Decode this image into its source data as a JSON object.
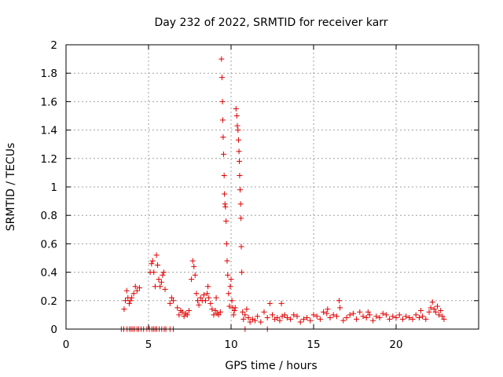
{
  "chart_data": {
    "type": "scatter",
    "title": "Day 232 of 2022, SRMTID for receiver karr",
    "xlabel": "GPS time / hours",
    "ylabel": "SRMTID / TECUs",
    "xlim": [
      0,
      25
    ],
    "ylim": [
      0,
      2
    ],
    "xticks": [
      "0",
      "5",
      "10",
      "15",
      "20"
    ],
    "yticks": [
      "0",
      "0.2",
      "0.4",
      "0.6",
      "0.8",
      "1",
      "1.2",
      "1.4",
      "1.6",
      "1.8",
      "2"
    ],
    "xtick_values": [
      0,
      5,
      10,
      15,
      20
    ],
    "ytick_values": [
      0,
      0.2,
      0.4,
      0.6,
      0.8,
      1.0,
      1.2,
      1.4,
      1.6,
      1.8,
      2.0
    ],
    "grid": true,
    "marker": "+",
    "colors": {
      "series": "#e00000",
      "grid": "#a0a0a0",
      "axis": "#000000"
    },
    "series": [
      {
        "name": "SRMTID",
        "x": [
          3.35,
          3.5,
          3.7,
          3.85,
          3.95,
          4.05,
          4.15,
          4.3,
          4.4,
          4.55,
          4.7,
          4.9,
          5.05,
          5.2,
          5.3,
          5.4,
          5.5,
          5.65,
          5.8,
          5.95,
          6.05,
          6.3,
          6.5,
          3.52,
          3.6,
          3.68,
          3.75,
          3.83,
          3.9,
          3.98,
          4.1,
          4.2,
          4.3,
          4.45,
          5.1,
          5.18,
          5.25,
          5.32,
          5.4,
          5.48,
          5.55,
          5.62,
          5.7,
          5.78,
          5.85,
          5.92,
          6.0,
          6.3,
          6.4,
          6.5,
          6.75,
          6.85,
          6.95,
          7.05,
          7.15,
          7.25,
          7.35,
          7.45,
          7.6,
          7.68,
          7.75,
          7.82,
          7.9,
          7.98,
          8.05,
          8.15,
          8.25,
          8.35,
          8.45,
          8.55,
          8.65,
          8.75,
          8.85,
          8.95,
          9.05,
          9.15,
          9.25,
          9.35,
          9.42,
          9.45,
          9.48,
          9.5,
          9.52,
          9.55,
          9.58,
          9.6,
          9.63,
          9.66,
          9.7,
          9.73,
          9.76,
          9.8,
          9.85,
          9.9,
          9.95,
          10.0,
          10.05,
          10.1,
          10.15,
          10.2,
          10.25,
          10.3,
          10.35,
          10.38,
          10.42,
          10.45,
          10.48,
          10.5,
          10.52,
          10.55,
          10.58,
          10.6,
          10.62,
          10.65,
          10.7,
          10.75,
          10.85,
          10.95,
          11.05,
          11.15,
          11.3,
          11.45,
          11.6,
          11.8,
          12.0,
          12.2,
          12.35,
          12.5,
          12.65,
          12.8,
          12.95,
          13.1,
          13.25,
          13.4,
          13.6,
          13.8,
          14.0,
          14.2,
          14.4,
          14.6,
          14.8,
          15.0,
          15.2,
          15.4,
          15.6,
          15.8,
          16.0,
          16.2,
          16.4,
          16.6,
          16.8,
          17.0,
          17.2,
          17.4,
          17.6,
          17.8,
          18.0,
          18.2,
          18.4,
          18.6,
          18.8,
          19.0,
          19.2,
          19.4,
          19.6,
          19.8,
          20.0,
          20.2,
          20.4,
          20.6,
          20.8,
          21.0,
          21.2,
          21.4,
          21.6,
          21.8,
          22.0,
          22.1,
          22.2,
          22.3,
          22.4,
          22.5,
          22.6,
          22.7,
          22.8,
          22.9,
          16.55,
          15.85,
          13.05,
          8.6,
          9.1,
          18.3,
          21.5,
          12.2,
          10.85
        ],
        "y": [
          0,
          0,
          0,
          0,
          0,
          0,
          0,
          0,
          0,
          0,
          0,
          0,
          0,
          0,
          0,
          0,
          0,
          0,
          0,
          0,
          0,
          0,
          0,
          0.14,
          0.2,
          0.27,
          0.22,
          0.18,
          0.2,
          0.22,
          0.25,
          0.3,
          0.27,
          0.29,
          0.4,
          0.46,
          0.48,
          0.4,
          0.3,
          0.52,
          0.45,
          0.35,
          0.3,
          0.33,
          0.38,
          0.4,
          0.28,
          0.18,
          0.22,
          0.2,
          0.15,
          0.1,
          0.13,
          0.12,
          0.09,
          0.11,
          0.1,
          0.13,
          0.35,
          0.48,
          0.44,
          0.38,
          0.25,
          0.2,
          0.17,
          0.22,
          0.2,
          0.24,
          0.2,
          0.25,
          0.22,
          0.18,
          0.14,
          0.1,
          0.13,
          0.11,
          0.1,
          0.12,
          1.9,
          1.77,
          1.6,
          1.47,
          1.35,
          1.23,
          1.08,
          0.95,
          0.88,
          0.86,
          0.76,
          0.6,
          0.48,
          0.38,
          0.25,
          0.16,
          0.3,
          0.35,
          0.2,
          0.15,
          0.1,
          0.13,
          0.15,
          1.55,
          1.5,
          1.43,
          1.4,
          1.33,
          1.25,
          1.18,
          1.08,
          0.98,
          0.88,
          0.78,
          0.58,
          0.4,
          0.12,
          0.07,
          0.1,
          0.14,
          0.08,
          0.05,
          0.07,
          0.06,
          0.09,
          0.05,
          0.12,
          0.08,
          0.18,
          0.1,
          0.07,
          0.08,
          0.06,
          0.09,
          0.1,
          0.08,
          0.07,
          0.1,
          0.09,
          0.05,
          0.07,
          0.08,
          0.06,
          0.1,
          0.09,
          0.07,
          0.12,
          0.11,
          0.08,
          0.1,
          0.09,
          0.15,
          0.06,
          0.08,
          0.1,
          0.11,
          0.07,
          0.12,
          0.09,
          0.08,
          0.1,
          0.06,
          0.09,
          0.08,
          0.11,
          0.1,
          0.07,
          0.09,
          0.08,
          0.1,
          0.07,
          0.09,
          0.08,
          0.07,
          0.1,
          0.08,
          0.09,
          0.07,
          0.12,
          0.15,
          0.19,
          0.14,
          0.12,
          0.16,
          0.1,
          0.13,
          0.09,
          0.07,
          0.2,
          0.14,
          0.18,
          0.3,
          0.22,
          0.12,
          0.13,
          0,
          0
        ]
      }
    ]
  }
}
